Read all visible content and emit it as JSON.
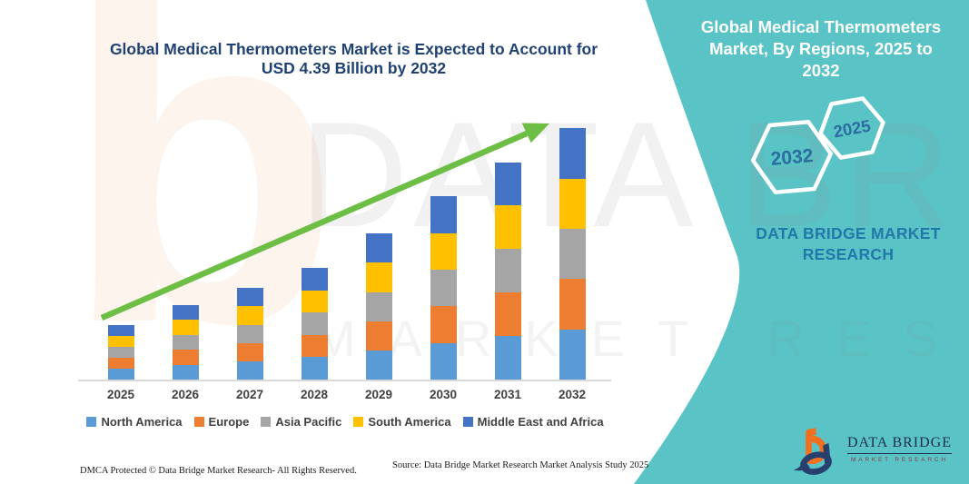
{
  "header": {
    "title_line1": "Global Medical Thermometers Market is Expected to Account for",
    "title_line2": "USD 4.39 Billion by 2032"
  },
  "side_panel": {
    "title_line1": "Global Medical Thermometers",
    "title_line2": "Market, By Regions, 2025 to 2032",
    "hexagons": [
      {
        "label": "2032"
      },
      {
        "label": "2025"
      }
    ],
    "brand_line1": "DATA BRIDGE MARKET",
    "brand_line2": "RESEARCH",
    "panel_color": "#5ac3c5",
    "hexagon_text_color": "#2a6d9e"
  },
  "chart_data": {
    "type": "bar",
    "stacked": true,
    "title": "Global Medical Thermometers Market is Expected to Account for USD 4.39 Billion by 2032",
    "unit": "USD Billion",
    "categories": [
      "2025",
      "2026",
      "2027",
      "2028",
      "2029",
      "2030",
      "2031",
      "2032"
    ],
    "series": [
      {
        "name": "North America",
        "color": "#5b9bd5",
        "values": [
          0.19,
          0.26,
          0.32,
          0.39,
          0.51,
          0.64,
          0.76,
          0.878
        ]
      },
      {
        "name": "Europe",
        "color": "#ed7d31",
        "values": [
          0.19,
          0.26,
          0.32,
          0.39,
          0.51,
          0.64,
          0.76,
          0.878
        ]
      },
      {
        "name": "Asia Pacific",
        "color": "#a5a5a5",
        "values": [
          0.19,
          0.26,
          0.32,
          0.39,
          0.51,
          0.64,
          0.76,
          0.878
        ]
      },
      {
        "name": "South America",
        "color": "#ffc000",
        "values": [
          0.19,
          0.26,
          0.32,
          0.39,
          0.51,
          0.64,
          0.76,
          0.878
        ]
      },
      {
        "name": "Middle East and Africa",
        "color": "#4472c4",
        "values": [
          0.19,
          0.26,
          0.32,
          0.39,
          0.51,
          0.64,
          0.76,
          0.878
        ]
      }
    ],
    "totals_estimated": [
      0.95,
      1.3,
      1.6,
      1.95,
      2.55,
      3.2,
      3.8,
      4.39
    ],
    "ylim": [
      0,
      4.6
    ],
    "gridlines": false,
    "legend_position": "bottom",
    "trend_arrow_color": "#6cbe45"
  },
  "watermark": {
    "logo_glyph": "b",
    "line1": "DATA BRIDGE",
    "line2": "MARKET RESEARCH"
  },
  "footer": {
    "dmca": "DMCA Protected © Data Bridge Market Research-  All Rights Reserved.",
    "source": "Source: Data Bridge Market Research  Market Analysis Study 2025"
  },
  "logo": {
    "name": "DATA BRIDGE",
    "subtitle": "MARKET RESEARCH"
  }
}
